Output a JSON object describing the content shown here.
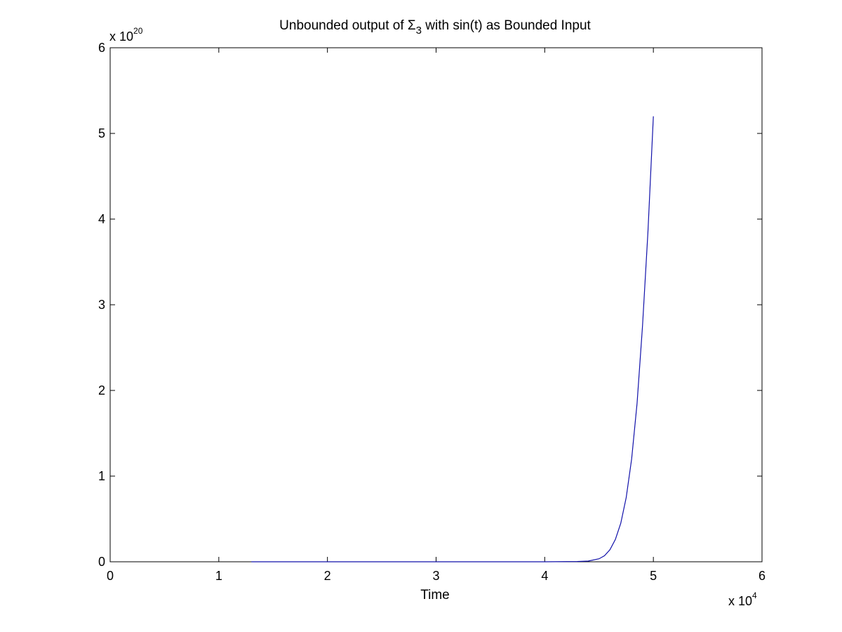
{
  "chart_data": {
    "type": "line",
    "title_prefix": "Unbounded output of ",
    "title_symbol": "Σ",
    "title_subscript": "3",
    "title_suffix": " with sin(t) as Bounded Input",
    "xlabel": "Time",
    "ylabel": "",
    "x_multiplier_base": "x 10",
    "x_multiplier_exp": "4",
    "y_multiplier_base": "x 10",
    "y_multiplier_exp": "20",
    "xlim": [
      0,
      6
    ],
    "ylim": [
      0,
      6
    ],
    "x_ticks": [
      0,
      1,
      2,
      3,
      4,
      5,
      6
    ],
    "y_ticks": [
      0,
      1,
      2,
      3,
      4,
      5,
      6
    ],
    "x_tick_labels": [
      "0",
      "1",
      "2",
      "3",
      "4",
      "5",
      "6"
    ],
    "y_tick_labels": [
      "0",
      "1",
      "2",
      "3",
      "4",
      "5",
      "6"
    ],
    "grid": false,
    "line_color": "#1111aa",
    "series": [
      {
        "x": [
          1.3,
          2.0,
          3.0,
          4.0,
          4.3,
          4.4,
          4.5,
          4.55,
          4.6,
          4.65,
          4.7,
          4.75,
          4.8,
          4.85,
          4.9,
          4.95,
          5.0
        ],
        "values": [
          0,
          0,
          0,
          0.0001,
          0.003,
          0.008,
          0.035,
          0.07,
          0.14,
          0.26,
          0.45,
          0.75,
          1.2,
          1.85,
          2.75,
          3.85,
          5.2
        ]
      }
    ]
  }
}
